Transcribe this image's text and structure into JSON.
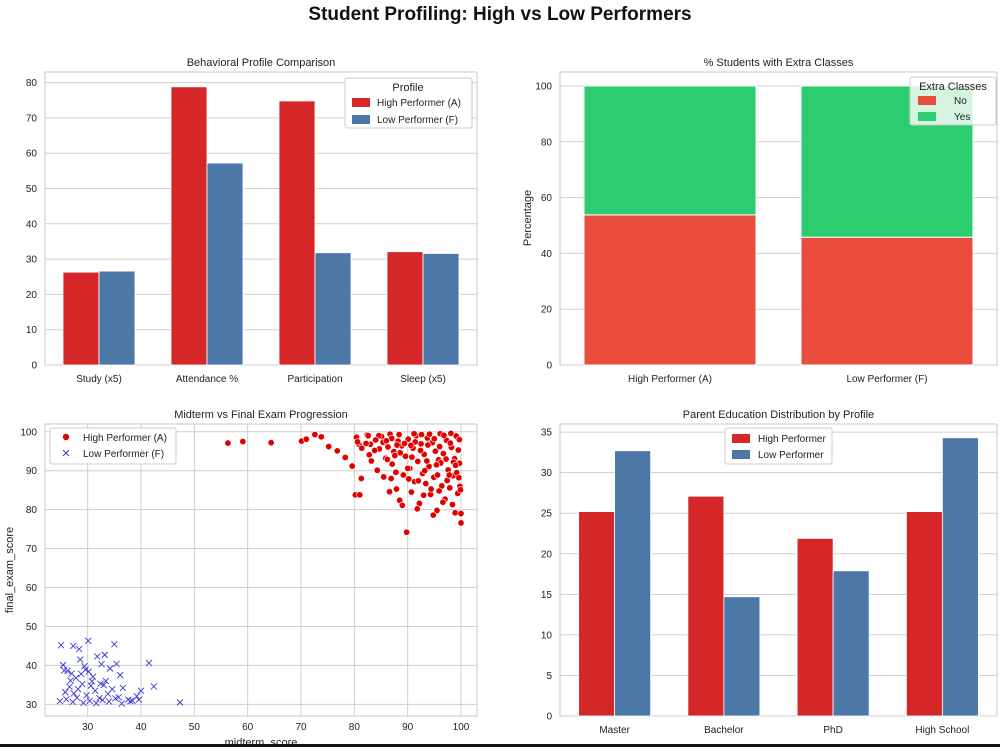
{
  "figure_title": "Student Profiling: High vs Low Performers",
  "colors": {
    "red": "#d62728",
    "blue": "#4c78a8",
    "no": "#e74c3c",
    "yes": "#2ecc71",
    "scatter_red": "#e00000",
    "scatter_blue": "#3a3ad6"
  },
  "chart_data": [
    {
      "type": "bar",
      "title": "Behavioral Profile Comparison",
      "categories": [
        "Study (x5)",
        "Attendance %",
        "Participation",
        "Sleep (x5)"
      ],
      "series": [
        {
          "name": "High Performer (A)",
          "values": [
            26.3,
            78.8,
            74.8,
            32.1
          ]
        },
        {
          "name": "Low Performer (F)",
          "values": [
            26.6,
            57.2,
            31.8,
            31.6
          ]
        }
      ],
      "ylim": [
        0,
        83
      ],
      "yticks": [
        0,
        10,
        20,
        30,
        40,
        50,
        60,
        70,
        80
      ],
      "legend_title": "Profile",
      "legend_position": "top-right"
    },
    {
      "type": "bar",
      "stacked": true,
      "title": "% Students with Extra Classes",
      "categories": [
        "High Performer (A)",
        "Low Performer (F)"
      ],
      "ylabel": "Percentage",
      "series": [
        {
          "name": "No",
          "values": [
            53.8,
            45.8
          ]
        },
        {
          "name": "Yes",
          "values": [
            46.2,
            54.2
          ]
        }
      ],
      "ylim": [
        0,
        105
      ],
      "yticks": [
        0,
        20,
        40,
        60,
        80,
        100
      ],
      "legend_title": "Extra Classes",
      "legend_position": "top-right"
    },
    {
      "type": "scatter",
      "title": "Midterm vs Final Exam Progression",
      "xlabel": "midterm_score",
      "ylabel": "final_exam_score",
      "xlim": [
        22,
        103
      ],
      "ylim": [
        27,
        102
      ],
      "xticks": [
        30,
        40,
        50,
        60,
        70,
        80,
        90,
        100
      ],
      "yticks": [
        30,
        40,
        50,
        60,
        70,
        80,
        90,
        100
      ],
      "legend_position": "top-left",
      "series": [
        {
          "name": "High Performer (A)",
          "marker": "circle",
          "points": [
            [
              56.3,
              97.1
            ],
            [
              59.1,
              97.5
            ],
            [
              64.4,
              97.2
            ],
            [
              70.1,
              97.6
            ],
            [
              71.0,
              98.1
            ],
            [
              72.6,
              99.3
            ],
            [
              73.8,
              98.7
            ],
            [
              75.2,
              96.2
            ],
            [
              76.8,
              95.1
            ],
            [
              78.3,
              93.4
            ],
            [
              79.6,
              91.2
            ],
            [
              80.4,
              98.6
            ],
            [
              80.9,
              96.7
            ],
            [
              81.3,
              88.0
            ],
            [
              82.4,
              99.2
            ],
            [
              82.8,
              94.1
            ],
            [
              83.2,
              92.5
            ],
            [
              83.9,
              97.9
            ],
            [
              84.3,
              90.1
            ],
            [
              84.7,
              95.6
            ],
            [
              85.1,
              98.8
            ],
            [
              85.5,
              88.4
            ],
            [
              85.9,
              93.2
            ],
            [
              86.3,
              96.1
            ],
            [
              86.7,
              99.4
            ],
            [
              87.1,
              91.7
            ],
            [
              87.4,
              94.9
            ],
            [
              87.9,
              85.3
            ],
            [
              88.2,
              97.6
            ],
            [
              88.5,
              82.4
            ],
            [
              88.9,
              96.4
            ],
            [
              89.2,
              88.9
            ],
            [
              89.6,
              93.7
            ],
            [
              89.8,
              74.2
            ],
            [
              90.1,
              98.1
            ],
            [
              90.4,
              90.6
            ],
            [
              90.7,
              84.5
            ],
            [
              91.0,
              95.8
            ],
            [
              91.3,
              87.2
            ],
            [
              91.6,
              99.0
            ],
            [
              91.9,
              92.4
            ],
            [
              92.2,
              81.6
            ],
            [
              92.5,
              96.9
            ],
            [
              92.8,
              89.3
            ],
            [
              93.1,
              94.2
            ],
            [
              93.4,
              86.7
            ],
            [
              93.7,
              98.4
            ],
            [
              94.0,
              91.1
            ],
            [
              94.3,
              83.9
            ],
            [
              94.6,
              97.2
            ],
            [
              94.9,
              88.3
            ],
            [
              95.2,
              95.0
            ],
            [
              95.5,
              79.8
            ],
            [
              95.8,
              92.8
            ],
            [
              96.1,
              99.5
            ],
            [
              96.4,
              86.1
            ],
            [
              96.7,
              94.4
            ],
            [
              97.0,
              82.7
            ],
            [
              97.3,
              97.8
            ],
            [
              97.6,
              90.2
            ],
            [
              97.9,
              85.6
            ],
            [
              98.2,
              96.0
            ],
            [
              98.5,
              88.7
            ],
            [
              98.8,
              93.1
            ],
            [
              99.1,
              98.9
            ],
            [
              99.4,
              84.2
            ],
            [
              99.7,
              91.9
            ],
            [
              100.0,
              76.6
            ],
            [
              99.8,
              86.0
            ],
            [
              99.5,
              95.3
            ],
            [
              99.2,
              89.5
            ],
            [
              98.9,
              79.2
            ],
            [
              98.6,
              92.2
            ],
            [
              98.0,
              97.1
            ],
            [
              97.4,
              87.5
            ],
            [
              96.8,
              99.1
            ],
            [
              96.2,
              92.0
            ],
            [
              95.6,
              88.9
            ],
            [
              95.0,
              98.2
            ],
            [
              94.4,
              85.3
            ],
            [
              93.8,
              96.6
            ],
            [
              93.2,
              90.0
            ],
            [
              92.6,
              99.3
            ],
            [
              92.0,
              87.4
            ],
            [
              91.4,
              97.4
            ],
            [
              90.8,
              93.5
            ],
            [
              90.2,
              87.9
            ],
            [
              89.4,
              97.0
            ],
            [
              88.6,
              94.6
            ],
            [
              87.8,
              89.6
            ],
            [
              87.0,
              98.3
            ],
            [
              86.2,
              92.9
            ],
            [
              85.4,
              97.3
            ],
            [
              84.6,
              99.0
            ],
            [
              83.8,
              95.2
            ],
            [
              83.0,
              96.8
            ],
            [
              82.2,
              97.0
            ],
            [
              81.4,
              95.8
            ],
            [
              80.6,
              97.4
            ],
            [
              80.2,
              83.8
            ],
            [
              81.0,
              83.8
            ],
            [
              86.6,
              84.6
            ],
            [
              89.0,
              81.1
            ],
            [
              91.8,
              80.2
            ],
            [
              94.8,
              78.6
            ],
            [
              96.6,
              81.9
            ],
            [
              98.4,
              81.3
            ],
            [
              100.0,
              79.0
            ],
            [
              99.9,
              85.1
            ],
            [
              99.6,
              88.2
            ],
            [
              97.2,
              93.0
            ],
            [
              95.4,
              91.5
            ],
            [
              93.6,
              92.5
            ],
            [
              92.4,
              95.2
            ],
            [
              90.6,
              96.5
            ],
            [
              88.4,
              99.3
            ],
            [
              87.6,
              93.9
            ],
            [
              86.0,
              97.7
            ],
            [
              84.0,
              97.9
            ],
            [
              82.6,
              99.0
            ],
            [
              86.9,
              88.0
            ],
            [
              90.0,
              90.6
            ],
            [
              93.0,
              83.7
            ],
            [
              95.9,
              84.8
            ],
            [
              97.8,
              88.9
            ],
            [
              99.0,
              91.4
            ],
            [
              99.7,
              98.0
            ],
            [
              98.1,
              99.6
            ],
            [
              96.0,
              96.2
            ],
            [
              94.1,
              99.4
            ],
            [
              91.2,
              99.5
            ],
            [
              88.0,
              96.6
            ]
          ]
        },
        {
          "name": "Low Performer (F)",
          "marker": "x",
          "points": [
            [
              25.0,
              45.2
            ],
            [
              27.3,
              45.0
            ],
            [
              28.4,
              44.2
            ],
            [
              30.1,
              46.3
            ],
            [
              33.2,
              42.7
            ],
            [
              35.0,
              45.4
            ],
            [
              41.5,
              40.6
            ],
            [
              42.4,
              34.6
            ],
            [
              47.3,
              30.5
            ],
            [
              25.4,
              40.1
            ],
            [
              26.2,
              38.6
            ],
            [
              27.0,
              37.9
            ],
            [
              27.8,
              36.8
            ],
            [
              28.6,
              41.5
            ],
            [
              29.4,
              39.8
            ],
            [
              30.2,
              38.4
            ],
            [
              31.0,
              37.1
            ],
            [
              31.8,
              42.3
            ],
            [
              32.6,
              40.3
            ],
            [
              33.4,
              36.0
            ],
            [
              34.2,
              39.2
            ],
            [
              35.4,
              40.4
            ],
            [
              36.1,
              37.5
            ],
            [
              25.8,
              33.1
            ],
            [
              26.6,
              34.5
            ],
            [
              27.4,
              32.8
            ],
            [
              28.2,
              33.9
            ],
            [
              29.0,
              35.2
            ],
            [
              29.8,
              32.3
            ],
            [
              30.6,
              34.8
            ],
            [
              31.4,
              33.5
            ],
            [
              32.2,
              31.6
            ],
            [
              33.0,
              34.9
            ],
            [
              33.8,
              32.7
            ],
            [
              34.6,
              33.9
            ],
            [
              35.8,
              31.8
            ],
            [
              36.6,
              34.2
            ],
            [
              37.6,
              31.2
            ],
            [
              38.4,
              30.9
            ],
            [
              39.2,
              32.1
            ],
            [
              40.0,
              33.5
            ],
            [
              24.8,
              30.8
            ],
            [
              26.0,
              31.3
            ],
            [
              27.2,
              30.6
            ],
            [
              28.0,
              31.7
            ],
            [
              29.2,
              30.4
            ],
            [
              30.4,
              30.9
            ],
            [
              31.6,
              30.3
            ],
            [
              32.8,
              31.1
            ],
            [
              34.0,
              30.7
            ],
            [
              35.2,
              31.5
            ],
            [
              36.4,
              30.2
            ],
            [
              38.0,
              30.8
            ],
            [
              39.6,
              31.2
            ],
            [
              26.8,
              36.1
            ],
            [
              28.8,
              37.8
            ],
            [
              30.8,
              35.9
            ],
            [
              32.4,
              35.3
            ],
            [
              29.6,
              38.9
            ],
            [
              25.6,
              38.7
            ]
          ]
        }
      ]
    },
    {
      "type": "bar",
      "title": "Parent Education Distribution by Profile",
      "categories": [
        "Master",
        "Bachelor",
        "PhD",
        "High School"
      ],
      "series": [
        {
          "name": "High Performer",
          "values": [
            25.2,
            27.1,
            21.9,
            25.2
          ]
        },
        {
          "name": "Low Performer",
          "values": [
            32.7,
            14.7,
            17.9,
            34.3
          ]
        }
      ],
      "ylim": [
        0,
        36
      ],
      "yticks": [
        0,
        5,
        10,
        15,
        20,
        25,
        30,
        35
      ],
      "legend_position": "upper center"
    }
  ]
}
